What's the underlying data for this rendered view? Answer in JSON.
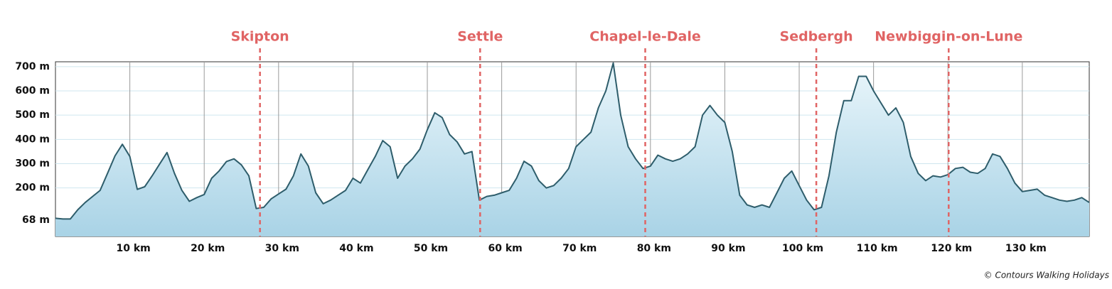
{
  "chart_data": {
    "type": "area",
    "x": [
      0,
      1,
      2,
      3,
      4,
      5,
      6,
      7,
      8,
      9,
      10,
      11,
      12,
      13,
      14,
      15,
      16,
      17,
      18,
      19,
      20,
      21,
      22,
      23,
      24,
      25,
      26,
      27,
      28,
      29,
      30,
      31,
      32,
      33,
      34,
      35,
      36,
      37,
      38,
      39,
      40,
      41,
      42,
      43,
      44,
      45,
      46,
      47,
      48,
      49,
      50,
      51,
      52,
      53,
      54,
      55,
      56,
      57,
      58,
      59,
      60,
      61,
      62,
      63,
      64,
      65,
      66,
      67,
      68,
      69,
      70,
      71,
      72,
      73,
      74,
      75,
      76,
      77,
      78,
      79,
      80,
      81,
      82,
      83,
      84,
      85,
      86,
      87,
      88,
      89,
      90,
      91,
      92,
      93,
      94,
      95,
      96,
      97,
      98,
      99,
      100,
      101,
      102,
      103,
      104,
      105,
      106,
      107,
      108,
      109,
      110,
      111,
      112,
      113,
      114,
      115,
      116,
      117,
      118,
      119,
      120,
      121,
      122,
      123,
      124,
      125,
      126,
      127,
      128,
      129,
      130,
      131,
      132,
      133,
      134,
      135,
      136,
      137,
      138,
      139
    ],
    "values": [
      75,
      72,
      72,
      110,
      140,
      165,
      190,
      260,
      332,
      380,
      330,
      194,
      205,
      250,
      298,
      346,
      260,
      190,
      145,
      160,
      173,
      240,
      270,
      309,
      320,
      295,
      250,
      115,
      120,
      155,
      175,
      195,
      250,
      340,
      290,
      180,
      135,
      150,
      170,
      190,
      240,
      220,
      275,
      330,
      395,
      370,
      240,
      290,
      320,
      360,
      440,
      510,
      490,
      420,
      390,
      340,
      350,
      150,
      165,
      170,
      180,
      190,
      240,
      310,
      290,
      230,
      200,
      210,
      240,
      280,
      370,
      400,
      430,
      530,
      600,
      715,
      500,
      370,
      320,
      280,
      290,
      335,
      320,
      310,
      320,
      340,
      370,
      500,
      540,
      500,
      470,
      350,
      170,
      130,
      120,
      130,
      120,
      180,
      240,
      270,
      210,
      150,
      110,
      120,
      250,
      430,
      560,
      560,
      660,
      660,
      600,
      550,
      500,
      530,
      470,
      330,
      260,
      230,
      250,
      245,
      255,
      280,
      285,
      265,
      260,
      280,
      340,
      330,
      280,
      220,
      185,
      190,
      195,
      170,
      160,
      150,
      145,
      150,
      160,
      140
    ],
    "color": "#2e5d6b",
    "xlim": [
      0,
      139
    ],
    "ylim": [
      0,
      720
    ],
    "yticks": [
      {
        "value": 68,
        "label": "68 m"
      },
      {
        "value": 200,
        "label": "200 m"
      },
      {
        "value": 300,
        "label": "300 m"
      },
      {
        "value": 400,
        "label": "400 m"
      },
      {
        "value": 500,
        "label": "500 m"
      },
      {
        "value": 600,
        "label": "600 m"
      },
      {
        "value": 700,
        "label": "700 m"
      }
    ],
    "xticks": [
      {
        "value": 10,
        "label": "10 km"
      },
      {
        "value": 20,
        "label": "20 km"
      },
      {
        "value": 30,
        "label": "30 km"
      },
      {
        "value": 40,
        "label": "40 km"
      },
      {
        "value": 50,
        "label": "50 km"
      },
      {
        "value": 60,
        "label": "60 km"
      },
      {
        "value": 70,
        "label": "70 km"
      },
      {
        "value": 80,
        "label": "80 km"
      },
      {
        "value": 90,
        "label": "90 km"
      },
      {
        "value": 100,
        "label": "100 km"
      },
      {
        "value": 110,
        "label": "110 km"
      },
      {
        "value": 120,
        "label": "120 km"
      },
      {
        "value": 130,
        "label": "130 km"
      }
    ],
    "grid": true,
    "towns": [
      {
        "name": "Skipton",
        "km": 27.5
      },
      {
        "name": "Settle",
        "km": 57.1
      },
      {
        "name": "Chapel-le-Dale",
        "km": 79.3
      },
      {
        "name": "Sedbergh",
        "km": 102.3
      },
      {
        "name": "Newbiggin-on-Lune",
        "km": 120.1
      }
    ],
    "town_color": "#e06464",
    "credit": "© Contours Walking Holidays"
  }
}
